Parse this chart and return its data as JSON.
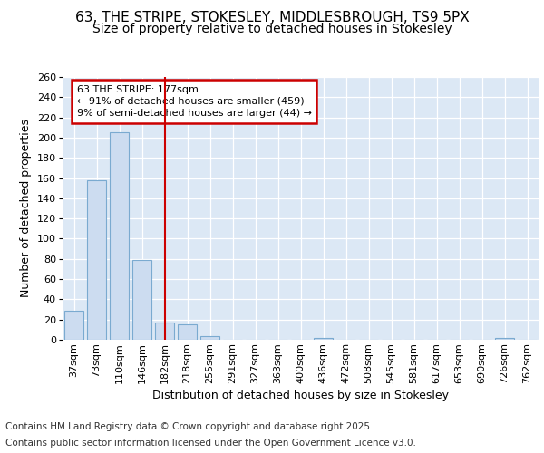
{
  "title": "63, THE STRIPE, STOKESLEY, MIDDLESBROUGH, TS9 5PX",
  "subtitle": "Size of property relative to detached houses in Stokesley",
  "xlabel": "Distribution of detached houses by size in Stokesley",
  "ylabel": "Number of detached properties",
  "footer_line1": "Contains HM Land Registry data © Crown copyright and database right 2025.",
  "footer_line2": "Contains public sector information licensed under the Open Government Licence v3.0.",
  "categories": [
    "37sqm",
    "73sqm",
    "110sqm",
    "146sqm",
    "182sqm",
    "218sqm",
    "255sqm",
    "291sqm",
    "327sqm",
    "363sqm",
    "400sqm",
    "436sqm",
    "472sqm",
    "508sqm",
    "545sqm",
    "581sqm",
    "617sqm",
    "653sqm",
    "690sqm",
    "726sqm",
    "762sqm"
  ],
  "values": [
    29,
    158,
    205,
    79,
    17,
    15,
    4,
    0,
    0,
    0,
    0,
    2,
    0,
    0,
    0,
    0,
    0,
    0,
    0,
    2,
    0
  ],
  "bar_color": "#ccdcf0",
  "bar_edge_color": "#7aaad0",
  "red_line_index": 4,
  "annotation_line1": "63 THE STRIPE: 177sqm",
  "annotation_line2": "← 91% of detached houses are smaller (459)",
  "annotation_line3": "9% of semi-detached houses are larger (44) →",
  "annotation_box_color": "#ffffff",
  "annotation_box_edge_color": "#cc0000",
  "ylim": [
    0,
    260
  ],
  "yticks": [
    0,
    20,
    40,
    60,
    80,
    100,
    120,
    140,
    160,
    180,
    200,
    220,
    240,
    260
  ],
  "bg_color": "#ffffff",
  "plot_bg_color": "#dce8f5",
  "title_fontsize": 11,
  "subtitle_fontsize": 10,
  "tick_fontsize": 8,
  "label_fontsize": 9,
  "footer_fontsize": 7.5
}
